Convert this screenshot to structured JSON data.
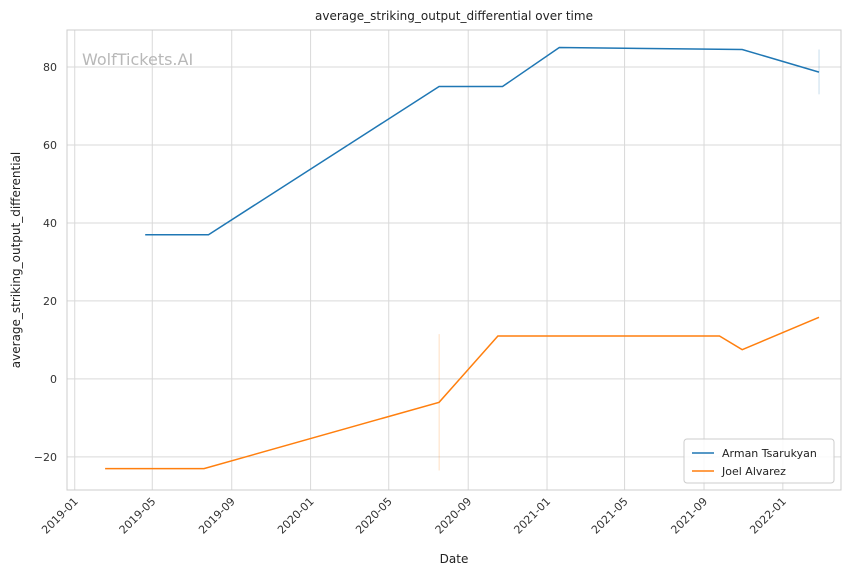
{
  "chart_data": {
    "type": "line",
    "title": "average_striking_output_differential over time",
    "xlabel": "Date",
    "ylabel": "average_striking_output_differential",
    "watermark": "WolfTickets.AI",
    "x_ticks": [
      "2019-01",
      "2019-05",
      "2019-09",
      "2020-01",
      "2020-05",
      "2020-09",
      "2021-01",
      "2021-05",
      "2021-09",
      "2022-01"
    ],
    "y_ticks": [
      -20,
      0,
      20,
      40,
      60,
      80
    ],
    "xlim": [
      "2018-12-20",
      "2022-04-01"
    ],
    "ylim": [
      -28.5,
      89.5
    ],
    "grid": true,
    "legend_position": "lower-right",
    "series": [
      {
        "name": "Arman Tsarukyan",
        "color": "#1f77b4",
        "points": [
          {
            "x": "2019-04-20",
            "y": 37
          },
          {
            "x": "2019-07-27",
            "y": 37
          },
          {
            "x": "2020-07-18",
            "y": 75
          },
          {
            "x": "2020-10-24",
            "y": 75
          },
          {
            "x": "2021-01-20",
            "y": 85
          },
          {
            "x": "2021-10-30",
            "y": 84.5
          },
          {
            "x": "2022-02-26",
            "y": 78.7
          }
        ],
        "error_bar": {
          "x": "2022-02-26",
          "low": 73,
          "high": 84.5
        }
      },
      {
        "name": "Joel Alvarez",
        "color": "#ff7f0e",
        "points": [
          {
            "x": "2019-02-17",
            "y": -23
          },
          {
            "x": "2019-07-20",
            "y": -23
          },
          {
            "x": "2020-07-18",
            "y": -6
          },
          {
            "x": "2020-10-17",
            "y": 11
          },
          {
            "x": "2021-09-25",
            "y": 11
          },
          {
            "x": "2021-10-30",
            "y": 7.5
          },
          {
            "x": "2022-02-26",
            "y": 15.8
          }
        ],
        "error_bar": {
          "x": "2020-07-18",
          "low": -23.5,
          "high": 11.5
        }
      }
    ]
  }
}
